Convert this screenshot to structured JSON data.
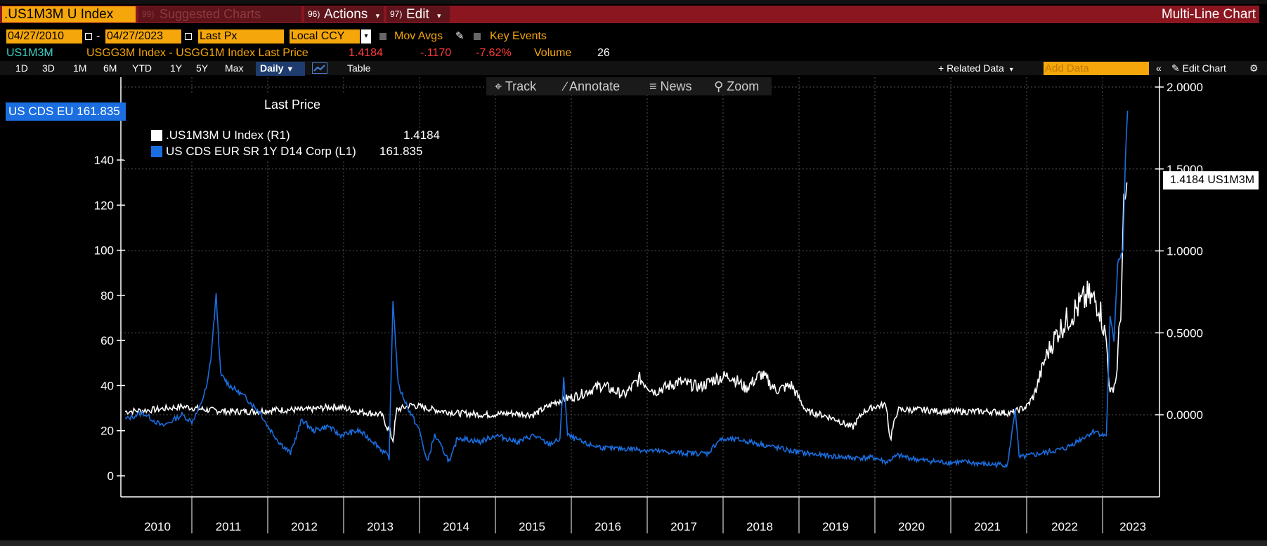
{
  "header": {
    "ticker": ".US1M3M U Index",
    "suggested_num": "99)",
    "suggested_label": "Suggested Charts",
    "actions_num": "96)",
    "actions_label": "Actions",
    "edit_num": "97)",
    "edit_label": "Edit",
    "chart_type": "Multi-Line Chart"
  },
  "controls": {
    "start_date": "04/27/2010",
    "dash": "-",
    "end_date": "04/27/2023",
    "field": "Last Px",
    "currency": "Local CCY",
    "mov_avgs": "Mov Avgs",
    "key_events": "Key Events"
  },
  "info": {
    "symbol": "US1M3M",
    "description": "USGG3M Index - USGG1M Index Last Price",
    "last": "1.4184",
    "change": "-.1170",
    "pct_change": "-7.62%",
    "volume_label": "Volume",
    "volume": "26"
  },
  "toolbar": {
    "ranges": [
      "1D",
      "3D",
      "1M",
      "6M",
      "YTD",
      "1Y",
      "5Y",
      "Max"
    ],
    "frequency": "Daily",
    "table_label": "Table",
    "related_data": "+ Related Data",
    "add_data_placeholder": "Add Data",
    "edit_chart": "Edit Chart"
  },
  "chart_tools": {
    "track": "Track",
    "annotate": "Annotate",
    "news": "News",
    "zoom": "Zoom"
  },
  "legend": {
    "title": "Last Price",
    "items": [
      {
        "label": ".US1M3M U Index  (R1)",
        "value": "1.4184",
        "color": "#ffffff"
      },
      {
        "label": "US CDS EUR SR 1Y D14 Corp  (L1)",
        "value": "161.835",
        "color": "#1a6ee0"
      }
    ]
  },
  "flags": {
    "left": "US CDS EU 161.835",
    "right": "1.4184 US1M3M"
  },
  "colors": {
    "title_bar": "#8b1620",
    "accent_orange": "#f5a60a",
    "cds_blue": "#1a6ee0",
    "spread_white": "#ffffff",
    "background": "#000000"
  },
  "chart_data": {
    "type": "line",
    "x_years": [
      "2010",
      "2011",
      "2012",
      "2013",
      "2014",
      "2015",
      "2016",
      "2017",
      "2018",
      "2019",
      "2020",
      "2021",
      "2022",
      "2023"
    ],
    "left_axis": {
      "ticks": [
        "0",
        "20",
        "40",
        "60",
        "80",
        "100",
        "120",
        "140"
      ],
      "ylim": [
        -10,
        165
      ]
    },
    "right_axis": {
      "ticks": [
        "0.0000",
        "0.5000",
        "1.0000",
        "1.5000",
        "2.0000"
      ],
      "ylim": [
        -0.5,
        2.0
      ]
    },
    "grid": true,
    "legend_position": "top-left",
    "series": [
      {
        "name": ".US1M3M U Index",
        "axis": "right",
        "color": "#ffffff",
        "points": [
          [
            2010.32,
            0.02
          ],
          [
            2010.6,
            0.03
          ],
          [
            2010.9,
            0.05
          ],
          [
            2011.2,
            0.03
          ],
          [
            2011.5,
            0.02
          ],
          [
            2011.8,
            0.02
          ],
          [
            2012.1,
            0.03
          ],
          [
            2012.5,
            0.03
          ],
          [
            2012.9,
            0.05
          ],
          [
            2013.2,
            0.02
          ],
          [
            2013.5,
            0.0
          ],
          [
            2013.65,
            -0.15
          ],
          [
            2013.7,
            0.03
          ],
          [
            2013.9,
            0.06
          ],
          [
            2014.2,
            0.03
          ],
          [
            2014.5,
            0.01
          ],
          [
            2014.9,
            0.0
          ],
          [
            2015.2,
            0.01
          ],
          [
            2015.5,
            0.0
          ],
          [
            2015.8,
            0.08
          ],
          [
            2015.95,
            0.1
          ],
          [
            2016.1,
            0.12
          ],
          [
            2016.4,
            0.18
          ],
          [
            2016.7,
            0.12
          ],
          [
            2016.9,
            0.22
          ],
          [
            2017.1,
            0.14
          ],
          [
            2017.4,
            0.2
          ],
          [
            2017.7,
            0.17
          ],
          [
            2017.9,
            0.22
          ],
          [
            2018.1,
            0.24
          ],
          [
            2018.3,
            0.16
          ],
          [
            2018.5,
            0.25
          ],
          [
            2018.7,
            0.15
          ],
          [
            2018.9,
            0.18
          ],
          [
            2019.1,
            0.02
          ],
          [
            2019.3,
            0.0
          ],
          [
            2019.5,
            -0.03
          ],
          [
            2019.7,
            -0.08
          ],
          [
            2019.85,
            0.02
          ],
          [
            2020.0,
            0.05
          ],
          [
            2020.15,
            0.06
          ],
          [
            2020.2,
            -0.15
          ],
          [
            2020.3,
            0.03
          ],
          [
            2020.6,
            0.03
          ],
          [
            2020.9,
            0.02
          ],
          [
            2021.2,
            0.02
          ],
          [
            2021.5,
            0.02
          ],
          [
            2021.8,
            0.01
          ],
          [
            2022.0,
            0.05
          ],
          [
            2022.1,
            0.12
          ],
          [
            2022.25,
            0.35
          ],
          [
            2022.4,
            0.5
          ],
          [
            2022.6,
            0.62
          ],
          [
            2022.8,
            0.72
          ],
          [
            2022.95,
            0.68
          ],
          [
            2023.05,
            0.45
          ],
          [
            2023.1,
            0.12
          ],
          [
            2023.18,
            0.22
          ],
          [
            2023.24,
            0.65
          ],
          [
            2023.28,
            1.2
          ],
          [
            2023.32,
            1.4184
          ]
        ]
      },
      {
        "name": "US CDS EUR SR 1Y D14 Corp",
        "axis": "left",
        "color": "#1a6ee0",
        "points": [
          [
            2010.32,
            25
          ],
          [
            2010.5,
            28
          ],
          [
            2010.7,
            22
          ],
          [
            2010.9,
            27
          ],
          [
            2011.0,
            24
          ],
          [
            2011.1,
            30
          ],
          [
            2011.2,
            40
          ],
          [
            2011.25,
            52
          ],
          [
            2011.32,
            80
          ],
          [
            2011.38,
            45
          ],
          [
            2011.5,
            40
          ],
          [
            2011.7,
            35
          ],
          [
            2011.9,
            28
          ],
          [
            2012.0,
            22
          ],
          [
            2012.15,
            15
          ],
          [
            2012.3,
            10
          ],
          [
            2012.45,
            25
          ],
          [
            2012.6,
            20
          ],
          [
            2012.8,
            22
          ],
          [
            2012.95,
            18
          ],
          [
            2013.2,
            20
          ],
          [
            2013.4,
            15
          ],
          [
            2013.6,
            8
          ],
          [
            2013.65,
            78
          ],
          [
            2013.72,
            40
          ],
          [
            2013.85,
            30
          ],
          [
            2014.0,
            20
          ],
          [
            2014.1,
            6
          ],
          [
            2014.2,
            18
          ],
          [
            2014.4,
            6
          ],
          [
            2014.5,
            17
          ],
          [
            2014.8,
            15
          ],
          [
            2015.0,
            18
          ],
          [
            2015.3,
            15
          ],
          [
            2015.5,
            18
          ],
          [
            2015.7,
            14
          ],
          [
            2015.85,
            16
          ],
          [
            2015.9,
            44
          ],
          [
            2015.95,
            18
          ],
          [
            2016.2,
            14
          ],
          [
            2016.5,
            12
          ],
          [
            2016.8,
            12
          ],
          [
            2017.1,
            11
          ],
          [
            2017.5,
            10
          ],
          [
            2017.8,
            10
          ],
          [
            2017.95,
            16
          ],
          [
            2018.2,
            16
          ],
          [
            2018.5,
            14
          ],
          [
            2018.9,
            11
          ],
          [
            2019.3,
            9
          ],
          [
            2019.7,
            8
          ],
          [
            2020.0,
            8
          ],
          [
            2020.15,
            6
          ],
          [
            2020.3,
            9
          ],
          [
            2020.6,
            7
          ],
          [
            2020.9,
            6
          ],
          [
            2021.2,
            6
          ],
          [
            2021.5,
            5
          ],
          [
            2021.75,
            5
          ],
          [
            2021.85,
            30
          ],
          [
            2021.9,
            8
          ],
          [
            2022.2,
            10
          ],
          [
            2022.5,
            12
          ],
          [
            2022.8,
            18
          ],
          [
            2022.9,
            20
          ],
          [
            2023.0,
            18
          ],
          [
            2023.05,
            18
          ],
          [
            2023.1,
            70
          ],
          [
            2023.15,
            60
          ],
          [
            2023.2,
            95
          ],
          [
            2023.27,
            100
          ],
          [
            2023.3,
            140
          ],
          [
            2023.33,
            161.835
          ]
        ]
      }
    ]
  }
}
